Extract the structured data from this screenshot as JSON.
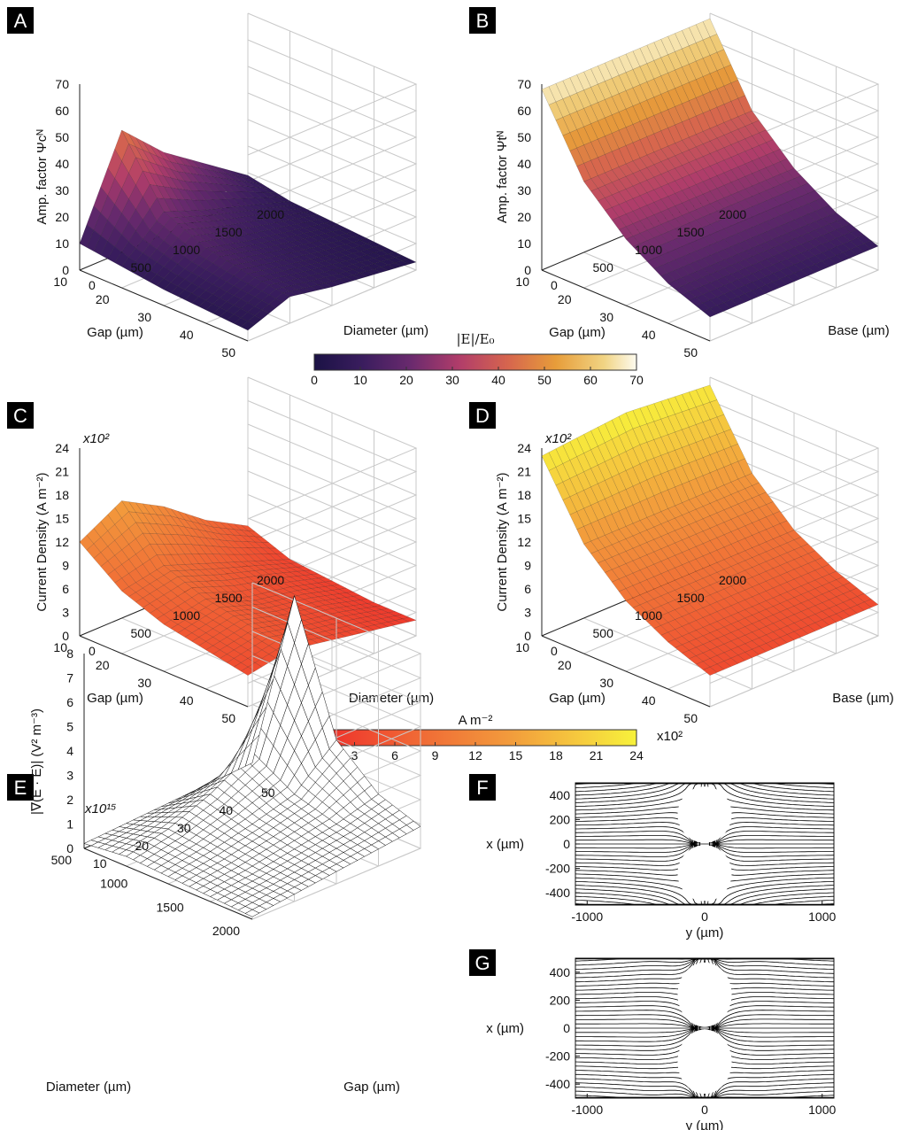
{
  "panel_labels": [
    "A",
    "B",
    "C",
    "D",
    "E",
    "F",
    "G"
  ],
  "colorbars": [
    {
      "label": "|E|/E₀",
      "ticks": [
        "0",
        "10",
        "20",
        "30",
        "40",
        "50",
        "60",
        "70"
      ],
      "colormap": "inferno"
    },
    {
      "label": "A m⁻²",
      "ticks": [
        "0",
        "3",
        "6",
        "9",
        "12",
        "15",
        "18",
        "21",
        "24"
      ],
      "multiplier": "x10²",
      "colormap": "autumn"
    }
  ],
  "chart_data": [
    {
      "panel": "A",
      "type": "surface",
      "xlabel": "Gap (µm)",
      "ylabel": "Diameter (µm)",
      "zlabel": "Amp. factor Ψcᴺ",
      "x_ticks": [
        "10",
        "20",
        "30",
        "40",
        "50"
      ],
      "y_ticks": [
        "0",
        "500",
        "1000",
        "1500",
        "2000"
      ],
      "z_ticks": [
        "0",
        "10",
        "20",
        "30",
        "40",
        "50",
        "60",
        "70"
      ],
      "xlim": [
        10,
        50
      ],
      "ylim": [
        0,
        2000
      ],
      "zlim": [
        0,
        70
      ],
      "gap": [
        10,
        20,
        30,
        40,
        50
      ],
      "size": [
        0,
        500,
        1000,
        1500,
        2000
      ],
      "values": [
        [
          10,
          46,
          31,
          20,
          9
        ],
        [
          8,
          22,
          16,
          11,
          6
        ],
        [
          6,
          15,
          11,
          8,
          5
        ],
        [
          5,
          12,
          9,
          6,
          4
        ],
        [
          4,
          10,
          7,
          5,
          3
        ]
      ]
    },
    {
      "panel": "B",
      "type": "surface",
      "xlabel": "Gap (µm)",
      "ylabel": "Base (µm)",
      "zlabel": "Amp. factor Ψtᴺ",
      "x_ticks": [
        "10",
        "20",
        "30",
        "40",
        "50"
      ],
      "y_ticks": [
        "0",
        "500",
        "1000",
        "1500",
        "2000"
      ],
      "z_ticks": [
        "0",
        "10",
        "20",
        "30",
        "40",
        "50",
        "60",
        "70"
      ],
      "xlim": [
        10,
        50
      ],
      "ylim": [
        0,
        2000
      ],
      "zlim": [
        0,
        70
      ],
      "gap": [
        10,
        20,
        30,
        40,
        50
      ],
      "size": [
        0,
        500,
        1000,
        1500,
        2000
      ],
      "values": [
        [
          68,
          68,
          68,
          68,
          68
        ],
        [
          40,
          40,
          40,
          40,
          40
        ],
        [
          25,
          25,
          25,
          25,
          25
        ],
        [
          15,
          15,
          15,
          15,
          15
        ],
        [
          9,
          9,
          9,
          9,
          9
        ]
      ]
    },
    {
      "panel": "C",
      "type": "surface",
      "xlabel": "Gap (µm)",
      "ylabel": "Diameter (µm)",
      "zlabel": "Current Density   (A m⁻²)",
      "z_multiplier": "x10²",
      "x_ticks": [
        "10",
        "20",
        "30",
        "40",
        "50"
      ],
      "y_ticks": [
        "0",
        "500",
        "1000",
        "1500",
        "2000"
      ],
      "z_ticks": [
        "0",
        "3",
        "6",
        "9",
        "12",
        "15",
        "18",
        "21",
        "24"
      ],
      "xlim": [
        10,
        50
      ],
      "ylim": [
        0,
        2000
      ],
      "zlim": [
        0,
        24
      ],
      "gap": [
        10,
        20,
        30,
        40,
        50
      ],
      "size": [
        0,
        500,
        1000,
        1500,
        2000
      ],
      "values": [
        [
          12,
          15,
          12,
          8,
          5
        ],
        [
          8,
          9,
          7,
          5,
          3
        ],
        [
          6,
          7,
          5,
          4,
          2.5
        ],
        [
          5,
          6,
          4.5,
          3.5,
          2
        ],
        [
          4,
          5,
          4,
          3,
          2
        ]
      ]
    },
    {
      "panel": "D",
      "type": "surface",
      "xlabel": "Gap (µm)",
      "ylabel": "Base (µm)",
      "zlabel": "Current Density   (A m⁻²)",
      "z_multiplier": "x10²",
      "x_ticks": [
        "10",
        "20",
        "30",
        "40",
        "50"
      ],
      "y_ticks": [
        "0",
        "500",
        "1000",
        "1500",
        "2000"
      ],
      "z_ticks": [
        "0",
        "3",
        "6",
        "9",
        "12",
        "15",
        "18",
        "21",
        "24"
      ],
      "xlim": [
        10,
        50
      ],
      "ylim": [
        0,
        2000
      ],
      "zlim": [
        0,
        24
      ],
      "gap": [
        10,
        20,
        30,
        40,
        50
      ],
      "size": [
        0,
        500,
        1000,
        1500,
        2000
      ],
      "values": [
        [
          23,
          23.5,
          24,
          23.5,
          23
        ],
        [
          14,
          14,
          14,
          14,
          14
        ],
        [
          9,
          9,
          9,
          9,
          9
        ],
        [
          6,
          6,
          6,
          6,
          6
        ],
        [
          4,
          4,
          4,
          4,
          4
        ]
      ]
    },
    {
      "panel": "E",
      "type": "surface",
      "xlabel": "Diameter (µm)",
      "ylabel": "Gap (µm)",
      "zlabel": "|∇(E · E)|   (V² m⁻³)",
      "z_multiplier": "x10¹⁵",
      "x_ticks": [
        "500",
        "1000",
        "1500",
        "2000"
      ],
      "y_ticks": [
        "10",
        "20",
        "30",
        "40",
        "50"
      ],
      "z_ticks": [
        "0",
        "1",
        "2",
        "3",
        "4",
        "5",
        "6",
        "7",
        "8"
      ],
      "xlim": [
        0,
        2000
      ],
      "ylim": [
        10,
        50
      ],
      "zlim": [
        0,
        8
      ],
      "diameter": [
        0,
        500,
        1000,
        1500,
        2000
      ],
      "gap": [
        10,
        20,
        30,
        40,
        50
      ],
      "values": [
        [
          0.2,
          0.3,
          0.4,
          0.5,
          0.6
        ],
        [
          0.4,
          0.8,
          1.5,
          2.5,
          8.2
        ],
        [
          0.3,
          0.6,
          1.0,
          1.5,
          3.0
        ],
        [
          0.2,
          0.4,
          0.7,
          1.0,
          1.5
        ],
        [
          0.1,
          0.3,
          0.5,
          0.7,
          0.9
        ]
      ]
    },
    {
      "panel": "F",
      "type": "streamlines",
      "xlabel": "y (µm)",
      "ylabel": "x (µm)",
      "x_ticks": [
        "-1000",
        "0",
        "1000"
      ],
      "y_ticks": [
        "400",
        "200",
        "0",
        "-200",
        "-400"
      ],
      "xlim": [
        -1100,
        1100
      ],
      "ylim": [
        -500,
        500
      ],
      "particles": [
        {
          "y": 0,
          "x": 240,
          "r": 230
        },
        {
          "y": 0,
          "x": -240,
          "r": 230
        }
      ],
      "lines_per_side": 34
    },
    {
      "panel": "G",
      "type": "streamlines",
      "xlabel": "y (µm)",
      "ylabel": "x (µm)",
      "x_ticks": [
        "-1000",
        "0",
        "1000"
      ],
      "y_ticks": [
        "400",
        "200",
        "0",
        "-200",
        "-400"
      ],
      "xlim": [
        -1100,
        1100
      ],
      "ylim": [
        -500,
        500
      ],
      "particles": [
        {
          "y": 0,
          "x": 240,
          "r": 230
        },
        {
          "y": 0,
          "x": -240,
          "r": 230
        }
      ],
      "lines_per_side": 34
    }
  ]
}
